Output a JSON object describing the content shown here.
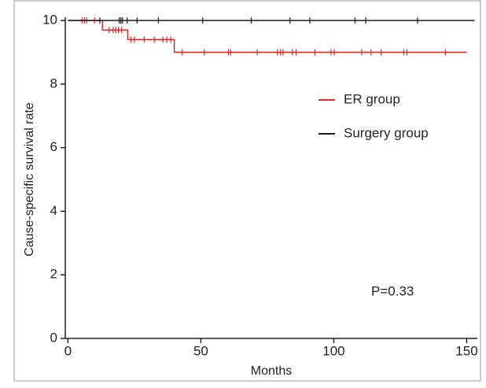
{
  "chart_data": {
    "type": "step",
    "x_label": "Months",
    "y_label": "Cause-specific survival rate",
    "annotation": "P=0.33",
    "xlim": [
      -1,
      154
    ],
    "ylim": [
      0,
      10.1
    ],
    "xticks": [
      0,
      50,
      100,
      150
    ],
    "yticks": [
      0,
      2,
      4,
      6,
      8,
      10
    ],
    "series": [
      {
        "name": "ER group",
        "color": "#d42a2a",
        "x": [
          0,
          13,
          22.5,
          40,
          150
        ],
        "values": [
          10,
          9.7,
          9.4,
          9.0,
          9.0
        ],
        "censored": {
          "x": [
            5.3,
            6.2,
            7,
            10,
            15.5,
            17,
            18,
            19,
            20.2,
            23.7,
            25,
            28.7,
            32.5,
            35.7,
            37.2,
            38.7,
            43,
            51.3,
            60.4,
            61.2,
            71.2,
            78.8,
            80,
            80.9,
            84.4,
            85.8,
            92.9,
            99,
            100.2,
            110.5,
            114,
            117.8,
            126.3,
            127.5,
            142
          ],
          "values": [
            10,
            10,
            10,
            10,
            9.7,
            9.7,
            9.7,
            9.7,
            9.7,
            9.4,
            9.4,
            9.4,
            9.4,
            9.4,
            9.4,
            9.4,
            9.0,
            9.0,
            9.0,
            9.0,
            9.0,
            9.0,
            9.0,
            9.0,
            9.0,
            9.0,
            9.0,
            9.0,
            9.0,
            9.0,
            9.0,
            9.0,
            9.0,
            9.0,
            9.0
          ]
        }
      },
      {
        "name": "Surgery group",
        "color": "#1a1a1a",
        "x": [
          0,
          153
        ],
        "values": [
          10,
          10
        ],
        "censored": {
          "x": [
            12,
            19.3,
            19.9,
            20.5,
            22.3,
            26,
            34,
            50.7,
            69,
            83.5,
            91,
            108,
            112,
            131.5
          ],
          "values": [
            10,
            10,
            10,
            10,
            10,
            10,
            10,
            10,
            10,
            10,
            10,
            10,
            10,
            10
          ]
        }
      }
    ]
  }
}
